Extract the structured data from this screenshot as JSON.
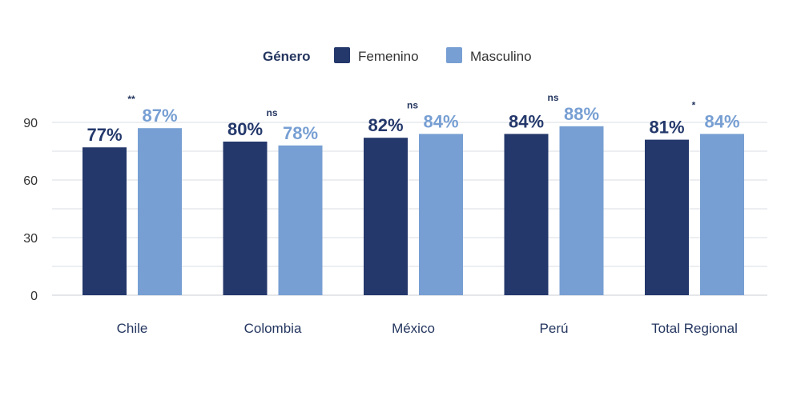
{
  "chart_data": {
    "type": "bar",
    "legend": {
      "title": "Género",
      "placement": "top-center"
    },
    "categories": [
      "Chile",
      "Colombia",
      "México",
      "Perú",
      "Total Regional"
    ],
    "series": [
      {
        "name": "Femenino",
        "color": "#24386b",
        "values": [
          77,
          80,
          82,
          84,
          81
        ],
        "labels": [
          "77%",
          "80%",
          "82%",
          "84%",
          "81%"
        ]
      },
      {
        "name": "Masculino",
        "color": "#779fd3",
        "values": [
          87,
          78,
          84,
          88,
          84
        ],
        "labels": [
          "87%",
          "78%",
          "84%",
          "88%",
          "84%"
        ]
      }
    ],
    "significance": [
      "**",
      "ns",
      "ns",
      "ns",
      "*"
    ],
    "y_ticks": [
      0,
      30,
      60,
      90
    ],
    "ylim": [
      0,
      100
    ],
    "grid": true
  }
}
